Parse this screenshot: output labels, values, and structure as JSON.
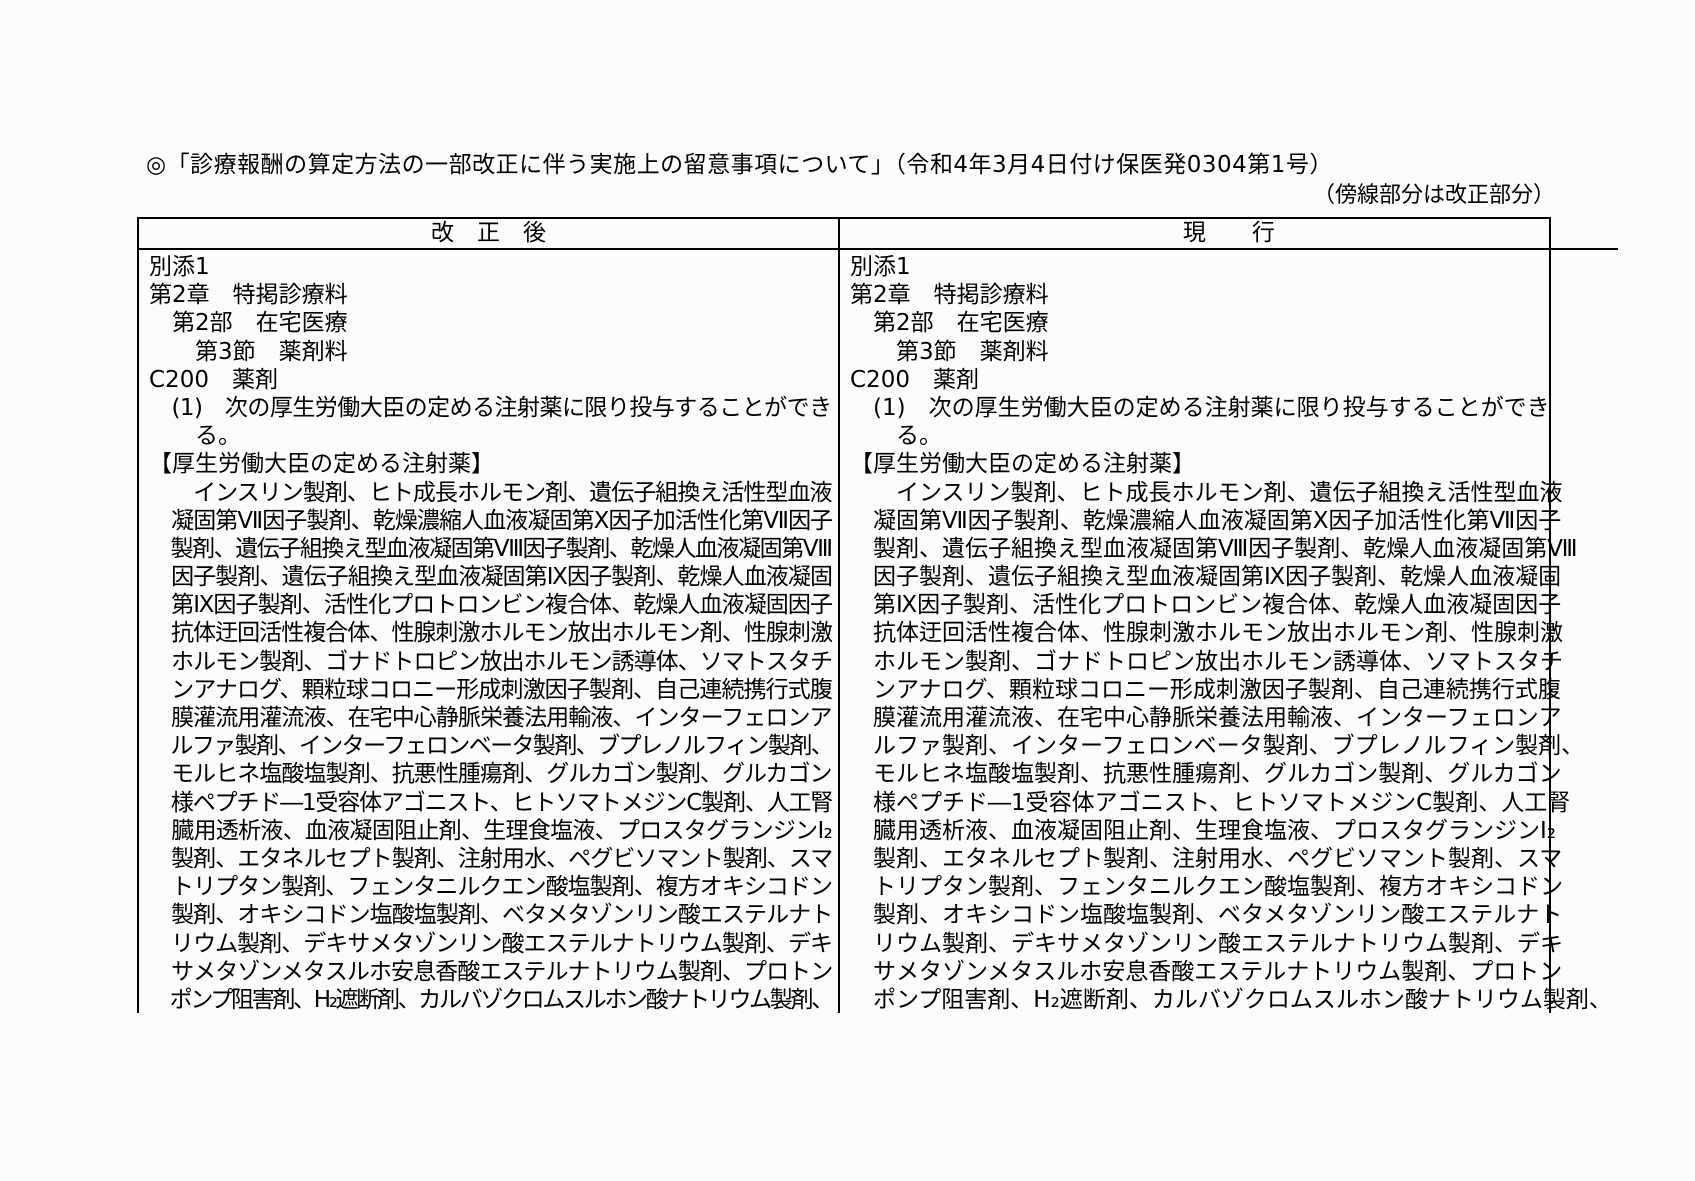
{
  "document": {
    "title": "◎「診療報酬の算定方法の一部改正に伴う実施上の留意事項について」（令和4年3月4日付け保医発0304第1号）",
    "note": "（傍線部分は改正部分）"
  },
  "comparison_table": {
    "revised_header": "改　正　後",
    "current_header": "現　　行",
    "revised_lines": [
      "別添1",
      "第2章　特掲診療料",
      "　第2部　在宅医療",
      "　　第3節　薬剤料",
      "C200　薬剤",
      "　(1)　次の厚生労働大臣の定める注射薬に限り投与することができ",
      "　　る。",
      "【厚生労働大臣の定める注射薬】",
      "　　インスリン製剤、ヒト成長ホルモン剤、遺伝子組換え活性型血液",
      "　凝固第Ⅶ因子製剤、乾燥濃縮人血液凝固第Ⅹ因子加活性化第Ⅶ因子",
      "　製剤、遺伝子組換え型血液凝固第Ⅷ因子製剤、乾燥人血液凝固第Ⅷ",
      "　因子製剤、遺伝子組換え型血液凝固第Ⅸ因子製剤、乾燥人血液凝固",
      "　第Ⅸ因子製剤、活性化プロトロンビン複合体、乾燥人血液凝固因子",
      "　抗体迂回活性複合体、性腺刺激ホルモン放出ホルモン剤、性腺刺激",
      "　ホルモン製剤、ゴナドトロピン放出ホルモン誘導体、ソマトスタチ",
      "　ンアナログ、顆粒球コロニー形成刺激因子製剤、自己連続携行式腹",
      "　膜灌流用灌流液、在宅中心静脈栄養法用輸液、インターフェロンア",
      "　ルファ製剤、インターフェロンベータ製剤、ブプレノルフィン製剤、",
      "　モルヒネ塩酸塩製剤、抗悪性腫瘍剤、グルカゴン製剤、グルカゴン",
      "　様ペプチド―1受容体アゴニスト、ヒトソマトメジンC製剤、人工腎",
      "　臓用透析液、血液凝固阻止剤、生理食塩液、プロスタグランジンI₂",
      "　製剤、エタネルセプト製剤、注射用水、ペグビソマント製剤、スマ",
      "　トリプタン製剤、フェンタニルクエン酸塩製剤、複方オキシコドン",
      "　製剤、オキシコドン塩酸塩製剤、ベタメタゾンリン酸エステルナト",
      "　リウム製剤、デキサメタゾンリン酸エステルナトリウム製剤、デキ",
      "　サメタゾンメタスルホ安息香酸エステルナトリウム製剤、プロトン",
      "　ポンプ阻害剤、H₂遮断剤、カルバゾクロムスルホン酸ナトリウム製剤、"
    ],
    "current_lines": [
      "別添1",
      "第2章　特掲診療料",
      "　第2部　在宅医療",
      "　　第3節　薬剤料",
      "C200　薬剤",
      "　(1)　次の厚生労働大臣の定める注射薬に限り投与することができ",
      "　　る。",
      "【厚生労働大臣の定める注射薬】",
      "　　インスリン製剤、ヒト成長ホルモン剤、遺伝子組換え活性型血液",
      "　凝固第Ⅶ因子製剤、乾燥濃縮人血液凝固第Ⅹ因子加活性化第Ⅶ因子",
      "　製剤、遺伝子組換え型血液凝固第Ⅷ因子製剤、乾燥人血液凝固第Ⅷ",
      "　因子製剤、遺伝子組換え型血液凝固第Ⅸ因子製剤、乾燥人血液凝固",
      "　第Ⅸ因子製剤、活性化プロトロンビン複合体、乾燥人血液凝固因子",
      "　抗体迂回活性複合体、性腺刺激ホルモン放出ホルモン剤、性腺刺激",
      "　ホルモン製剤、ゴナドトロピン放出ホルモン誘導体、ソマトスタチ",
      "　ンアナログ、顆粒球コロニー形成刺激因子製剤、自己連続携行式腹",
      "　膜灌流用灌流液、在宅中心静脈栄養法用輸液、インターフェロンア",
      "　ルファ製剤、インターフェロンベータ製剤、ブプレノルフィン製剤、",
      "　モルヒネ塩酸塩製剤、抗悪性腫瘍剤、グルカゴン製剤、グルカゴン",
      "　様ペプチド―1受容体アゴニスト、ヒトソマトメジンC製剤、人工腎",
      "　臓用透析液、血液凝固阻止剤、生理食塩液、プロスタグランジンI₂",
      "　製剤、エタネルセプト製剤、注射用水、ペグビソマント製剤、スマ",
      "　トリプタン製剤、フェンタニルクエン酸塩製剤、複方オキシコドン",
      "　製剤、オキシコドン塩酸塩製剤、ベタメタゾンリン酸エステルナト",
      "　リウム製剤、デキサメタゾンリン酸エステルナトリウム製剤、デキ",
      "　サメタゾンメタスルホ安息香酸エステルナトリウム製剤、プロトン",
      "　ポンプ阻害剤、H₂遮断剤、カルバゾクロムスルホン酸ナトリウム製剤、"
    ]
  }
}
